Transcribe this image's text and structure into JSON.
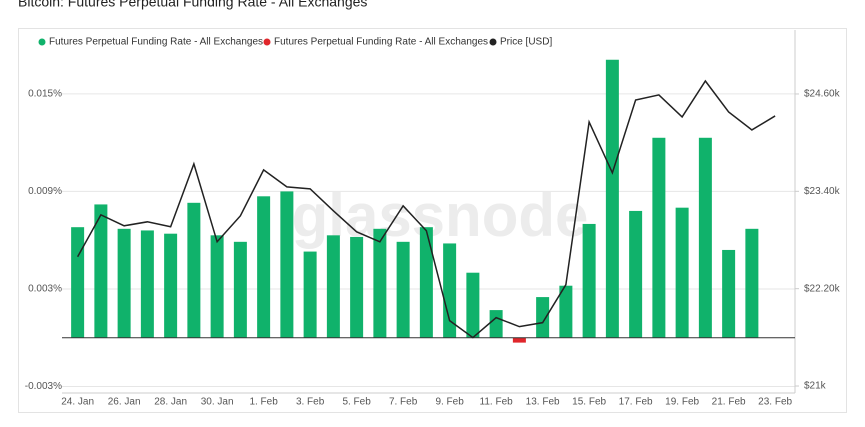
{
  "chart_data": {
    "type": "bar_line",
    "title": "Bitcoin: Futures Perpetual Funding Rate - All Exchanges",
    "watermark": "glassnode",
    "categories": [
      "24. Jan",
      null,
      "26. Jan",
      null,
      "28. Jan",
      null,
      "30. Jan",
      null,
      "1. Feb",
      null,
      "3. Feb",
      null,
      "5. Feb",
      null,
      "7. Feb",
      null,
      "9. Feb",
      null,
      "11. Feb",
      null,
      "13. Feb",
      null,
      "15. Feb",
      null,
      "17. Feb",
      null,
      "19. Feb",
      null,
      "21. Feb",
      null,
      "23. Feb"
    ],
    "series": [
      {
        "name": "Futures Perpetual Funding Rate - All Exchanges",
        "type": "bar",
        "color": "#10b26b",
        "values": [
          0.0068,
          0.0082,
          0.0067,
          0.0066,
          0.0064,
          0.0083,
          0.0063,
          0.0059,
          0.0087,
          0.009,
          0.0053,
          0.0063,
          0.0062,
          0.0067,
          0.0059,
          0.0068,
          0.0058,
          0.004,
          0.0017,
          null,
          0.0025,
          0.0032,
          0.007,
          0.0171,
          0.0078,
          0.0123,
          0.008,
          0.0123,
          0.0054,
          0.0067,
          null
        ]
      },
      {
        "name": "Futures Perpetual Funding Rate - All Exchanges",
        "type": "bar",
        "color": "#e0262b",
        "values": [
          null,
          null,
          null,
          null,
          null,
          null,
          null,
          null,
          null,
          null,
          null,
          null,
          null,
          null,
          null,
          null,
          null,
          null,
          null,
          -0.0003,
          null,
          null,
          null,
          null,
          null,
          null,
          null,
          null,
          null,
          null,
          null
        ]
      },
      {
        "name": "Price [USD]",
        "type": "line",
        "axis": "y2",
        "color": "#222222",
        "values": [
          22593,
          23110,
          22975,
          23024,
          22963,
          23738,
          22778,
          23098,
          23664,
          23455,
          23430,
          23160,
          22901,
          22778,
          23221,
          22914,
          21806,
          21597,
          21843,
          21732,
          21781,
          22249,
          24255,
          23628,
          24526,
          24588,
          24317,
          24760,
          24378,
          24157,
          24329
        ]
      }
    ],
    "ylim": [
      -0.0034,
      0.0177
    ],
    "yticks": [
      {
        "value": -0.003,
        "label": "-0.003%"
      },
      {
        "value": 0.003,
        "label": "0.003%"
      },
      {
        "value": 0.009,
        "label": "0.009%"
      },
      {
        "value": 0.015,
        "label": "0.015%"
      }
    ],
    "y2lim": [
      20914,
      25142
    ],
    "y2ticks": [
      {
        "value": 21000,
        "label": "$21k"
      },
      {
        "value": 22200,
        "label": "$22.20k"
      },
      {
        "value": 23400,
        "label": "$23.40k"
      },
      {
        "value": 24600,
        "label": "$24.60k"
      }
    ],
    "grid": true
  }
}
